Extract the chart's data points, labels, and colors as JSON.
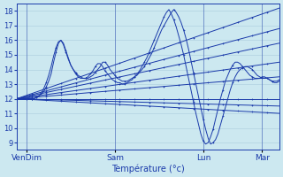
{
  "background_color": "#cce8f0",
  "grid_color": "#aaccdd",
  "line_color": "#1a3aaa",
  "xlabel": "Température (°c)",
  "ylabel_ticks": [
    9,
    10,
    11,
    12,
    13,
    14,
    15,
    16,
    17,
    18
  ],
  "ylim": [
    8.5,
    18.5
  ],
  "figsize": [
    3.2,
    2.0
  ],
  "dpi": 100,
  "n_points": 108,
  "xtick_positions": [
    4,
    40,
    76,
    100
  ],
  "xtick_labels": [
    "VenDim",
    "Sam",
    "Lun",
    "Mar"
  ],
  "straight_lines": [
    {
      "start": 12.0,
      "end": 18.2
    },
    {
      "start": 12.0,
      "end": 16.8
    },
    {
      "start": 12.0,
      "end": 15.8
    },
    {
      "start": 12.0,
      "end": 14.5
    },
    {
      "start": 12.0,
      "end": 13.5
    },
    {
      "start": 12.0,
      "end": 12.0
    },
    {
      "start": 12.0,
      "end": 11.5
    },
    {
      "start": 12.0,
      "end": 11.0
    }
  ],
  "curved_series": [
    [
      12.0,
      12.0,
      12.0,
      12.0,
      12.0,
      12.0,
      12.0,
      12.0,
      12.1,
      12.2,
      12.3,
      12.5,
      12.8,
      13.2,
      13.7,
      14.5,
      15.2,
      15.8,
      16.0,
      15.7,
      15.2,
      14.7,
      14.3,
      14.0,
      13.8,
      13.6,
      13.5,
      13.4,
      13.4,
      13.4,
      13.5,
      13.6,
      13.8,
      14.0,
      14.2,
      14.5,
      14.5,
      14.3,
      14.0,
      13.8,
      13.6,
      13.4,
      13.3,
      13.2,
      13.2,
      13.2,
      13.3,
      13.4,
      13.5,
      13.6,
      13.8,
      14.0,
      14.2,
      14.5,
      14.8,
      15.1,
      15.5,
      15.9,
      16.3,
      16.7,
      17.0,
      17.3,
      17.6,
      17.9,
      18.1,
      17.9,
      17.6,
      17.2,
      16.7,
      16.1,
      15.4,
      14.6,
      13.8,
      13.0,
      12.2,
      11.4,
      10.6,
      9.9,
      9.3,
      8.9,
      9.0,
      9.2,
      9.6,
      10.2,
      10.8,
      11.4,
      12.0,
      12.6,
      13.1,
      13.5,
      13.8,
      14.0,
      14.1,
      14.2,
      14.2,
      14.1,
      14.0,
      13.8,
      13.6,
      13.5,
      13.4,
      13.4,
      13.4,
      13.3,
      13.2,
      13.1,
      13.1,
      13.2
    ],
    [
      12.0,
      12.0,
      12.0,
      12.0,
      12.0,
      12.0,
      12.0,
      12.0,
      12.1,
      12.2,
      12.4,
      12.7,
      13.1,
      13.6,
      14.2,
      14.9,
      15.5,
      15.9,
      16.0,
      15.8,
      15.3,
      14.8,
      14.3,
      14.0,
      13.7,
      13.5,
      13.4,
      13.4,
      13.4,
      13.5,
      13.7,
      13.9,
      14.2,
      14.4,
      14.4,
      14.2,
      13.9,
      13.7,
      13.5,
      13.3,
      13.2,
      13.1,
      13.1,
      13.0,
      13.0,
      13.1,
      13.2,
      13.3,
      13.5,
      13.7,
      13.9,
      14.2,
      14.5,
      14.8,
      15.2,
      15.6,
      16.0,
      16.4,
      16.8,
      17.2,
      17.6,
      17.9,
      18.1,
      17.8,
      17.4,
      16.9,
      16.3,
      15.7,
      15.0,
      14.2,
      13.4,
      12.6,
      11.8,
      11.0,
      10.3,
      9.6,
      9.1,
      8.9,
      9.0,
      9.4,
      9.9,
      10.6,
      11.3,
      12.0,
      12.6,
      13.2,
      13.6,
      14.0,
      14.3,
      14.5,
      14.5,
      14.4,
      14.2,
      14.0,
      13.8,
      13.6,
      13.5,
      13.4,
      13.4,
      13.4,
      13.5,
      13.5,
      13.4,
      13.3,
      13.2,
      13.2,
      13.2,
      13.3
    ]
  ]
}
